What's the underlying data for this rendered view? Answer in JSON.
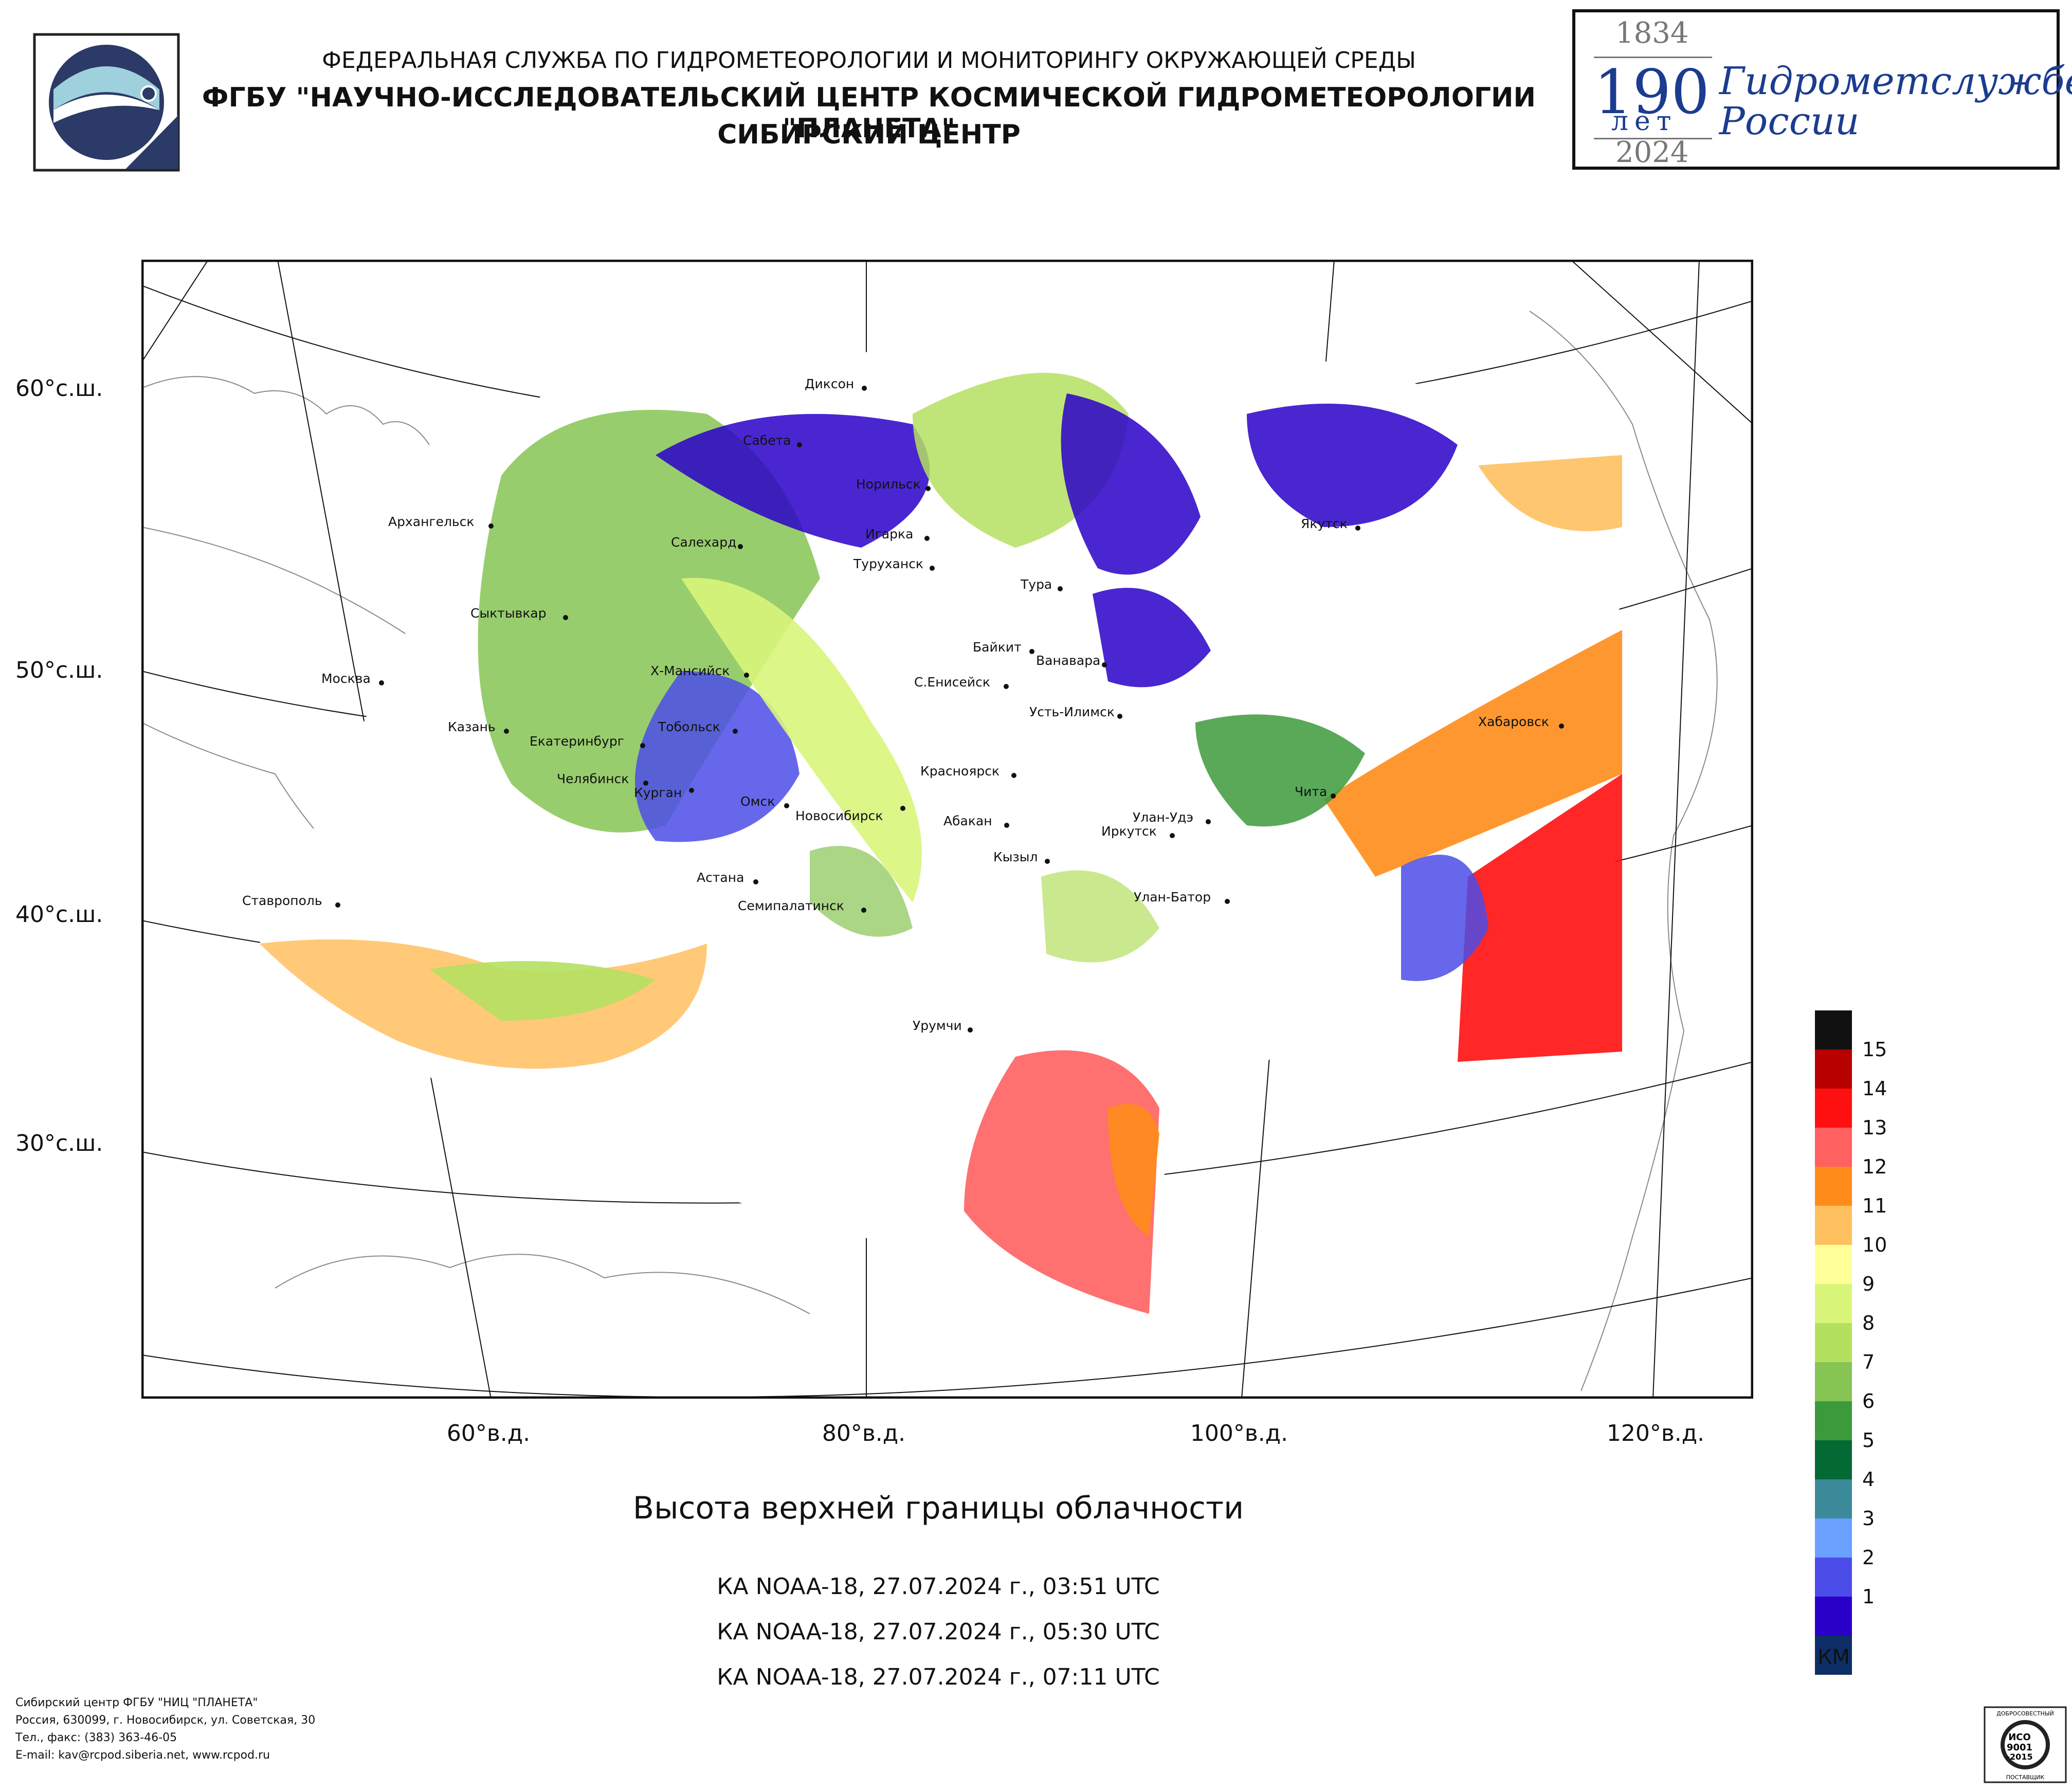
{
  "header": {
    "line1": "ФЕДЕРАЛЬНАЯ СЛУЖБА ПО ГИДРОМЕТЕОРОЛОГИИ И МОНИТОРИНГУ ОКРУЖАЮЩЕЙ СРЕДЫ",
    "line2": "ФГБУ \"НАУЧНО-ИССЛЕДОВАТЕЛЬСКИЙ ЦЕНТР КОСМИЧЕСКОЙ ГИДРОМЕТЕОРОЛОГИИ \"ПЛАНЕТА\"",
    "line3": "СИБИРСКИЙ ЦЕНТР"
  },
  "anniversary": {
    "year_start": "1834",
    "number": "190",
    "unit": "лет",
    "year_end": "2024",
    "text_line1": "Гидрометслужбе",
    "text_line2": "России"
  },
  "map": {
    "lat_labels": [
      "60°с.ш.",
      "50°с.ш.",
      "40°с.ш.",
      "30°с.ш."
    ],
    "lon_labels": [
      "60°в.д.",
      "80°в.д.",
      "100°в.д.",
      "120°в.д."
    ],
    "cities": [
      {
        "name": "Диксон"
      },
      {
        "name": "Сабета"
      },
      {
        "name": "Норильск"
      },
      {
        "name": "Архангельск"
      },
      {
        "name": "Салехард"
      },
      {
        "name": "Игарка"
      },
      {
        "name": "Туруханск"
      },
      {
        "name": "Тура"
      },
      {
        "name": "Якутск"
      },
      {
        "name": "Сыктывкар"
      },
      {
        "name": "Байкит"
      },
      {
        "name": "Ванавара"
      },
      {
        "name": "Москва"
      },
      {
        "name": "Х-Мансийск"
      },
      {
        "name": "С.Енисейск"
      },
      {
        "name": "Усть-Илимск"
      },
      {
        "name": "Хабаровск"
      },
      {
        "name": "Казань"
      },
      {
        "name": "Тобольск"
      },
      {
        "name": "Екатеринбург"
      },
      {
        "name": "Красноярск"
      },
      {
        "name": "Челябинск"
      },
      {
        "name": "Курган"
      },
      {
        "name": "Омск"
      },
      {
        "name": "Новосибирск"
      },
      {
        "name": "Чита"
      },
      {
        "name": "Абакан"
      },
      {
        "name": "Улан-Удэ"
      },
      {
        "name": "Иркутск"
      },
      {
        "name": "Кызыл"
      },
      {
        "name": "Астана"
      },
      {
        "name": "Ставрополь"
      },
      {
        "name": "Улан-Батор"
      },
      {
        "name": "Семипалатинск"
      },
      {
        "name": "Урумчи"
      }
    ]
  },
  "title": "Высота верхней границы облачности",
  "passes": [
    "КА NOAA-18, 27.07.2024 г., 03:51 UTC",
    "КА NOAA-18, 27.07.2024 г., 05:30 UTC",
    "КА NOAA-18, 27.07.2024 г., 07:11 UTC"
  ],
  "legend": {
    "unit": "КМ",
    "levels": [
      {
        "label": "15",
        "color": "#111111"
      },
      {
        "label": "14",
        "color": "#b80000"
      },
      {
        "label": "13",
        "color": "#ff1010"
      },
      {
        "label": "12",
        "color": "#ff6060"
      },
      {
        "label": "11",
        "color": "#ff8c1a"
      },
      {
        "label": "10",
        "color": "#ffc060"
      },
      {
        "label": "9",
        "color": "#ffff99"
      },
      {
        "label": "8",
        "color": "#d8f57a"
      },
      {
        "label": "7",
        "color": "#b4e060"
      },
      {
        "label": "6",
        "color": "#86c453"
      },
      {
        "label": "5",
        "color": "#3c9a3c"
      },
      {
        "label": "4",
        "color": "#046a33"
      },
      {
        "label": "3",
        "color": "#3b8a9a"
      },
      {
        "label": "2",
        "color": "#6aa0ff"
      },
      {
        "label": "1",
        "color": "#4c4ce8"
      },
      {
        "label": "",
        "color": "#2a00c8"
      },
      {
        "label": "",
        "color": "#0d2e66"
      }
    ]
  },
  "footer": {
    "line1": "Сибирский центр ФГБУ \"НИЦ \"ПЛАНЕТА\"",
    "line2": "Россия, 630099, г. Новосибирск, ул. Советская, 30",
    "line3": "Тел., факс: (383) 363-46-05",
    "line4": "E-mail: kav@rcpod.siberia.net, www.rcpod.ru"
  },
  "certificate": {
    "top": "ДОБРОСОВЕСТНЫЙ",
    "line1": "ИСО",
    "line2": "9001",
    "line3": "-2015",
    "bottom": "ПОСТАВЩИК"
  }
}
